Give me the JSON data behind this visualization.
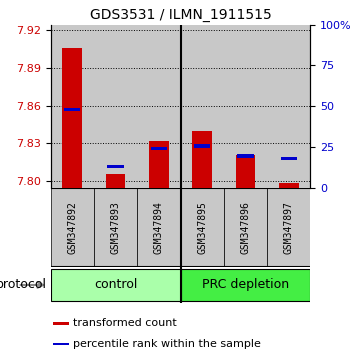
{
  "title": "GDS3531 / ILMN_1911515",
  "samples": [
    "GSM347892",
    "GSM347893",
    "GSM347894",
    "GSM347895",
    "GSM347896",
    "GSM347897"
  ],
  "red_values": [
    7.906,
    7.806,
    7.832,
    7.84,
    7.821,
    7.799
  ],
  "blue_values": [
    7.857,
    7.812,
    7.826,
    7.828,
    7.82,
    7.818
  ],
  "ymin": 7.795,
  "ymax": 7.924,
  "yticks_left": [
    7.8,
    7.83,
    7.86,
    7.89,
    7.92
  ],
  "yticks_right_pct": [
    0,
    25,
    50,
    75,
    100
  ],
  "yticks_right_labels": [
    "0",
    "25",
    "50",
    "75",
    "100%"
  ],
  "groups": [
    {
      "label": "control",
      "start": 0,
      "end": 2,
      "color": "#aaffaa"
    },
    {
      "label": "PRC depletion",
      "start": 3,
      "end": 5,
      "color": "#44ee44"
    }
  ],
  "protocol_label": "protocol",
  "legend_red_label": "transformed count",
  "legend_blue_label": "percentile rank within the sample",
  "red_color": "#cc0000",
  "blue_color": "#0000cc",
  "col_bg_color": "#c8c8c8",
  "title_fontsize": 10,
  "tick_fontsize": 8,
  "sample_fontsize": 7,
  "legend_fontsize": 8,
  "group_fontsize": 9,
  "protocol_fontsize": 9
}
